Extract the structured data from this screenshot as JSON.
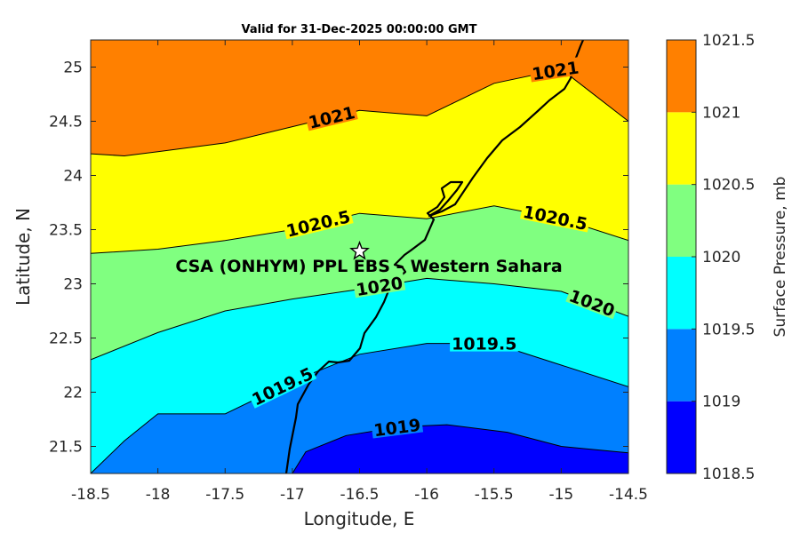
{
  "chart_data": {
    "type": "contourf",
    "title": "Valid for 31-Dec-2025 00:00:00 GMT",
    "xlabel": "Longitude, E",
    "ylabel": "Latitude, N",
    "xlim": [
      -18.5,
      -14.5
    ],
    "ylim": [
      21.25,
      25.25
    ],
    "xticks": [
      "-18.5",
      "-18",
      "-17.5",
      "-17",
      "-16.5",
      "-16",
      "-15.5",
      "-15",
      "-14.5"
    ],
    "yticks": [
      "21.5",
      "22",
      "22.5",
      "23",
      "23.5",
      "24",
      "24.5",
      "25"
    ],
    "levels": [
      1018.5,
      1019,
      1019.5,
      1020,
      1020.5,
      1021,
      1021.5
    ],
    "level_colors": [
      "#0000ff",
      "#0080ff",
      "#00ffff",
      "#80ff80",
      "#ffff00",
      "#ff8000",
      "#ff0000"
    ],
    "colorbar": {
      "label": "Surface Pressure, mb",
      "ticks": [
        "1018.5",
        "1019",
        "1019.5",
        "1020",
        "1020.5",
        "1021",
        "1021.5"
      ]
    },
    "contours": [
      {
        "level": 1019,
        "label": "1019",
        "points": [
          [
            -17.0,
            21.25
          ],
          [
            -16.9,
            21.45
          ],
          [
            -16.6,
            21.6
          ],
          [
            -16.2,
            21.68
          ],
          [
            -15.85,
            21.7
          ],
          [
            -15.4,
            21.63
          ],
          [
            -15.0,
            21.5
          ],
          [
            -14.5,
            21.44
          ]
        ]
      },
      {
        "level": 1019.5,
        "label": "1019.5",
        "points": [
          [
            -18.5,
            21.25
          ],
          [
            -18.25,
            21.55
          ],
          [
            -18.0,
            21.8
          ],
          [
            -17.5,
            21.8
          ],
          [
            -17.0,
            22.1
          ],
          [
            -16.5,
            22.35
          ],
          [
            -16.0,
            22.45
          ],
          [
            -15.5,
            22.45
          ],
          [
            -15.0,
            22.25
          ],
          [
            -14.5,
            22.05
          ]
        ]
      },
      {
        "level": 1020,
        "label": "1020",
        "points": [
          [
            -18.5,
            22.3
          ],
          [
            -18.0,
            22.55
          ],
          [
            -17.5,
            22.75
          ],
          [
            -17.0,
            22.86
          ],
          [
            -16.5,
            22.95
          ],
          [
            -16.0,
            23.05
          ],
          [
            -15.5,
            23.0
          ],
          [
            -15.0,
            22.93
          ],
          [
            -14.5,
            22.7
          ]
        ]
      },
      {
        "level": 1020.5,
        "label": "1020.5",
        "points": [
          [
            -18.5,
            23.28
          ],
          [
            -18.0,
            23.32
          ],
          [
            -17.5,
            23.4
          ],
          [
            -17.0,
            23.5
          ],
          [
            -16.5,
            23.65
          ],
          [
            -16.0,
            23.6
          ],
          [
            -15.5,
            23.72
          ],
          [
            -15.0,
            23.6
          ],
          [
            -14.5,
            23.4
          ]
        ]
      },
      {
        "level": 1021,
        "label": "1021",
        "points": [
          [
            -18.5,
            24.2
          ],
          [
            -18.25,
            24.18
          ],
          [
            -18.0,
            24.22
          ],
          [
            -17.5,
            24.3
          ],
          [
            -17.0,
            24.45
          ],
          [
            -16.5,
            24.6
          ],
          [
            -16.0,
            24.55
          ],
          [
            -15.5,
            24.85
          ],
          [
            -15.0,
            24.98
          ],
          [
            -14.5,
            24.5
          ]
        ]
      }
    ],
    "site": {
      "name": "CSA (ONHYM) PPL EBS – Western Sahara",
      "lon": -16.5,
      "lat": 23.3
    }
  }
}
